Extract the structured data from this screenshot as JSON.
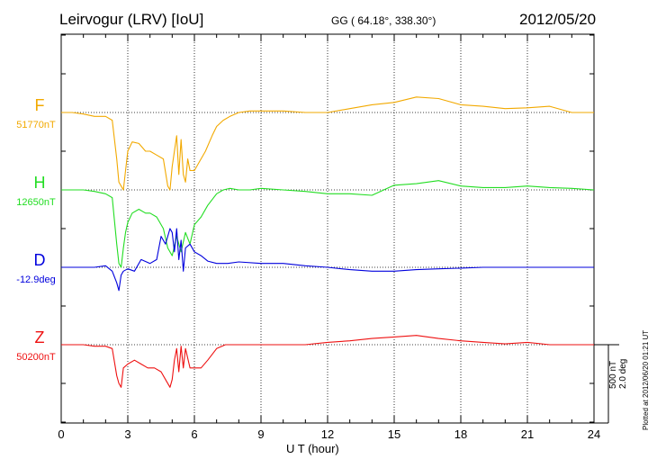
{
  "header": {
    "station": "Leirvogur (LRV)  [IoU]",
    "coords": "GG ( 64.18°, 338.30°)",
    "date": "2012/05/20"
  },
  "scale": {
    "lines": [
      "500 nT",
      "2.0 deg"
    ]
  },
  "plotted_note": "Plotted at 2012/06/20 01:21 UT",
  "chart_data": {
    "type": "line",
    "title": "Leirvogur (LRV)  [IoU]",
    "xlabel": "U T (hour)",
    "xlim": [
      0,
      24
    ],
    "xticks": [
      "0",
      "3",
      "6",
      "9",
      "12",
      "15",
      "18",
      "21",
      "24"
    ],
    "grid": true,
    "scale_per_division": {
      "nT": 500,
      "deg": 2.0
    },
    "series": [
      {
        "name": "F",
        "baseline": "51770nT",
        "color": "#f2a900",
        "offset_div": 1.5,
        "x": [
          0,
          0.5,
          1,
          1.5,
          2,
          2.3,
          2.5,
          2.6,
          2.7,
          2.8,
          2.9,
          3.0,
          3.2,
          3.5,
          3.8,
          4.0,
          4.3,
          4.6,
          4.8,
          4.9,
          5.0,
          5.1,
          5.2,
          5.3,
          5.4,
          5.5,
          5.6,
          5.7,
          5.8,
          6.0,
          6.2,
          6.5,
          6.8,
          7.0,
          7.3,
          7.6,
          8.0,
          8.5,
          9,
          10,
          11,
          12,
          13,
          14,
          15,
          16,
          17,
          18,
          19,
          20,
          21,
          22,
          23,
          24
        ],
        "y": [
          0,
          0,
          -0.02,
          -0.05,
          -0.05,
          -0.1,
          -0.6,
          -0.9,
          -0.95,
          -1.0,
          -0.75,
          -0.5,
          -0.38,
          -0.4,
          -0.5,
          -0.5,
          -0.55,
          -0.6,
          -0.95,
          -1.0,
          -0.7,
          -0.5,
          -0.3,
          -0.8,
          -0.35,
          -0.8,
          -0.9,
          -0.6,
          -0.75,
          -0.75,
          -0.65,
          -0.5,
          -0.3,
          -0.18,
          -0.1,
          -0.05,
          0.0,
          0.02,
          0.02,
          0.02,
          0.0,
          0.0,
          0.05,
          0.1,
          0.13,
          0.2,
          0.18,
          0.1,
          0.08,
          0.05,
          0.06,
          0.08,
          0.0,
          0.0
        ]
      },
      {
        "name": "H",
        "baseline": "12650nT",
        "color": "#22dd22",
        "offset_div": 0.5,
        "x": [
          0,
          0.5,
          1,
          1.5,
          2,
          2.3,
          2.5,
          2.6,
          2.7,
          2.8,
          2.9,
          3.0,
          3.2,
          3.5,
          3.8,
          4.0,
          4.3,
          4.6,
          4.8,
          5.0,
          5.2,
          5.4,
          5.6,
          5.8,
          6.0,
          6.3,
          6.6,
          7.0,
          7.3,
          7.6,
          8.0,
          8.5,
          9,
          10,
          11,
          12,
          13,
          14,
          15,
          16,
          17,
          18,
          19,
          20,
          21,
          22,
          23,
          24
        ],
        "y": [
          0,
          0,
          0.0,
          -0.02,
          -0.05,
          -0.1,
          -0.7,
          -0.95,
          -1.0,
          -0.75,
          -0.55,
          -0.42,
          -0.3,
          -0.25,
          -0.3,
          -0.3,
          -0.35,
          -0.5,
          -0.75,
          -0.85,
          -0.6,
          -0.8,
          -0.55,
          -0.7,
          -0.45,
          -0.35,
          -0.2,
          -0.05,
          0.0,
          0.02,
          0.0,
          0.0,
          0.02,
          0.0,
          -0.02,
          -0.05,
          -0.05,
          -0.07,
          0.06,
          0.08,
          0.12,
          0.05,
          0.03,
          0.03,
          0.05,
          0.03,
          0.02,
          0.0
        ]
      },
      {
        "name": "D",
        "baseline": "-12.9deg",
        "color": "#0000dd",
        "offset_div": -0.5,
        "x": [
          0,
          0.5,
          1,
          1.5,
          2,
          2.3,
          2.5,
          2.6,
          2.7,
          2.8,
          3.0,
          3.3,
          3.6,
          4.0,
          4.3,
          4.5,
          4.7,
          4.9,
          5.0,
          5.1,
          5.2,
          5.3,
          5.4,
          5.5,
          5.6,
          5.8,
          6.0,
          6.3,
          6.6,
          7.0,
          7.5,
          8.0,
          9,
          10,
          11,
          12,
          13,
          14,
          15,
          16,
          17,
          18,
          19,
          20,
          21,
          22,
          23,
          24
        ],
        "y": [
          0,
          0,
          0.0,
          0.0,
          0.02,
          -0.05,
          -0.2,
          -0.3,
          -0.1,
          -0.05,
          -0.02,
          -0.05,
          0.1,
          0.05,
          0.1,
          0.4,
          0.3,
          0.5,
          0.45,
          0.2,
          0.5,
          0.1,
          0.35,
          -0.05,
          0.25,
          0.3,
          0.2,
          0.15,
          0.08,
          0.05,
          0.05,
          0.07,
          0.05,
          0.05,
          0.02,
          0.0,
          -0.03,
          -0.05,
          -0.05,
          -0.03,
          -0.02,
          -0.01,
          0.0,
          0.0,
          0.0,
          0.0,
          0.0,
          0.0
        ]
      },
      {
        "name": "Z",
        "baseline": "50200nT",
        "color": "#ee1111",
        "offset_div": -1.5,
        "x": [
          0,
          0.5,
          1,
          1.5,
          2,
          2.3,
          2.5,
          2.6,
          2.7,
          2.8,
          3.0,
          3.3,
          3.6,
          3.9,
          4.2,
          4.5,
          4.7,
          4.9,
          5.0,
          5.1,
          5.2,
          5.3,
          5.4,
          5.5,
          5.6,
          5.8,
          6.0,
          6.3,
          6.6,
          7.0,
          7.4,
          8.0,
          9,
          10,
          11,
          12,
          13,
          14,
          15,
          16,
          17,
          18,
          19,
          20,
          21,
          22,
          23,
          24
        ],
        "y": [
          0,
          0,
          0.0,
          -0.02,
          -0.02,
          -0.05,
          -0.4,
          -0.5,
          -0.55,
          -0.3,
          -0.25,
          -0.2,
          -0.25,
          -0.3,
          -0.3,
          -0.35,
          -0.45,
          -0.55,
          -0.45,
          -0.2,
          -0.05,
          -0.35,
          -0.02,
          -0.3,
          -0.05,
          -0.3,
          -0.3,
          -0.3,
          -0.2,
          -0.05,
          0.0,
          0.0,
          0.0,
          0.0,
          0.0,
          0.03,
          0.05,
          0.08,
          0.1,
          0.12,
          0.08,
          0.05,
          0.03,
          0.01,
          0.03,
          0.0,
          0.0,
          0.0
        ]
      }
    ]
  }
}
